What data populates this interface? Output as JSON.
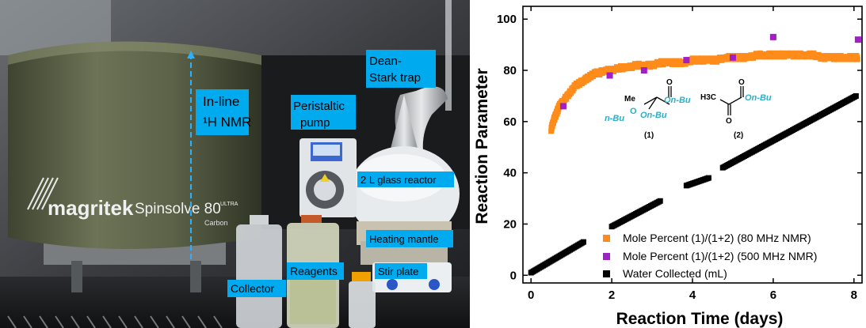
{
  "photo": {
    "labels": {
      "inline_nmr": "In-line\n¹H NMR",
      "peristaltic_pump": "Peristaltic\npump",
      "dean_stark": "Dean-\nStark trap",
      "glass_reactor": "2 L glass reactor",
      "heating_mantle": "Heating mantle",
      "stir_plate": "Stir plate",
      "reagents": "Reagents",
      "collector": "Collector"
    },
    "instrument_text": {
      "brand": "magritek",
      "model": "Spinsolve 80",
      "model_suffix": "ULTRA",
      "variant": "Carbon"
    }
  },
  "structures": {
    "compound1": {
      "number": "(1)",
      "me": "Me",
      "o": "O",
      "on_bu": "On-Bu",
      "n_bu": "n-Bu",
      "o2": "O",
      "on_bu2": "On-Bu"
    },
    "compound2": {
      "number": "(2)",
      "h3c": "H3C",
      "o": "O",
      "o2": "O",
      "on_bu": "On-Bu"
    }
  },
  "colors": {
    "orange_series": "#ff8c1a",
    "purple_series": "#a020c8",
    "black_series": "#000000",
    "label_box": "#00aaee",
    "structure_text": "#2ab0c8"
  },
  "chart_data": {
    "type": "scatter",
    "xlabel": "Reaction Time (days)",
    "ylabel": "Reaction Parameter",
    "xlim": [
      -0.2,
      8.2
    ],
    "ylim": [
      -3,
      105
    ],
    "xticks": [
      "0",
      "2",
      "4",
      "6",
      "8"
    ],
    "yticks": [
      "0",
      "20",
      "40",
      "60",
      "80",
      "100"
    ],
    "grid": false,
    "legend_position": "bottom-right",
    "series": [
      {
        "name": "Mole Percent (1)/(1+2) (80 MHz NMR)",
        "marker": "square",
        "x": [
          0.5,
          0.55,
          0.6,
          0.65,
          0.7,
          0.75,
          0.8,
          0.9,
          1.0,
          1.1,
          1.2,
          1.3,
          1.4,
          1.5,
          1.6,
          1.7,
          1.8,
          2.0,
          2.2,
          2.4,
          2.6,
          2.8,
          3.0,
          3.2,
          3.4,
          3.6,
          3.8,
          4.0,
          4.2,
          4.4,
          4.6,
          4.8,
          5.0,
          5.2,
          5.4,
          5.6,
          5.8,
          6.0,
          6.2,
          6.4,
          6.6,
          6.8,
          7.0,
          7.2,
          7.4,
          7.6,
          7.8,
          8.0,
          8.1
        ],
        "y": [
          57,
          60,
          62,
          64,
          66,
          67,
          68,
          70,
          72,
          74,
          75,
          76,
          77,
          78,
          79,
          79,
          80,
          80,
          81,
          81,
          82,
          82,
          82,
          83,
          83,
          83,
          83,
          84,
          84,
          84,
          84,
          85,
          85,
          85,
          85,
          86,
          86,
          86,
          86,
          86,
          86,
          86,
          86,
          85,
          85,
          85,
          85,
          85,
          85
        ]
      },
      {
        "name": "Mole Percent (1)/(1+2) (500 MHz NMR)",
        "marker": "square",
        "x": [
          0.8,
          1.95,
          2.8,
          3.85,
          5.0,
          6.0,
          8.1
        ],
        "y": [
          66,
          78,
          80,
          84,
          85,
          93,
          92
        ]
      },
      {
        "name": "Water Collected (mL)",
        "marker": "square",
        "segments": [
          {
            "x": [
              0.0,
              1.3
            ],
            "y": [
              1,
              13
            ]
          },
          {
            "x": [
              2.0,
              3.2
            ],
            "y": [
              19,
              29
            ]
          },
          {
            "x": [
              3.85,
              4.4
            ],
            "y": [
              35,
              38
            ]
          },
          {
            "x": [
              4.75,
              8.05
            ],
            "y": [
              42,
              70
            ]
          }
        ]
      }
    ]
  }
}
